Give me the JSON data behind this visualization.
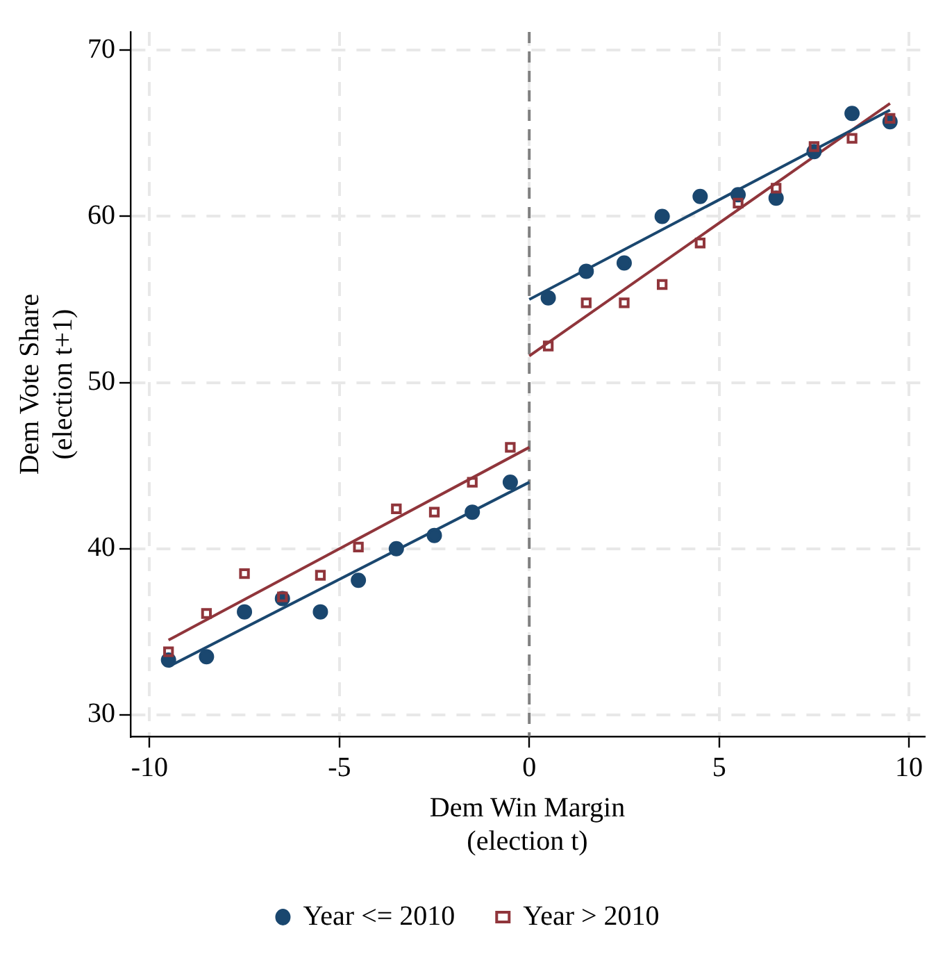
{
  "chart_data": {
    "type": "scatter",
    "xlabel": "Dem Win Margin\n(election t)",
    "ylabel": "Dem Vote Share\n(election t+1)",
    "x": [
      -9.5,
      -8.5,
      -7.5,
      -6.5,
      -5.5,
      -4.5,
      -3.5,
      -2.5,
      -1.5,
      -0.5,
      0.5,
      1.5,
      2.5,
      3.5,
      4.5,
      5.5,
      6.5,
      7.5,
      8.5,
      9.5
    ],
    "series": [
      {
        "name": "Year <= 2010",
        "marker": "circle",
        "color": "#1a476f",
        "values": [
          33.3,
          33.5,
          36.2,
          37.0,
          36.2,
          38.1,
          40.0,
          40.8,
          42.2,
          44.0,
          55.1,
          56.7,
          57.2,
          60.0,
          61.2,
          61.3,
          61.1,
          63.9,
          66.2,
          65.7
        ]
      },
      {
        "name": "Year > 2010",
        "marker": "square",
        "color": "#90353b",
        "values": [
          33.8,
          36.1,
          38.5,
          37.1,
          38.4,
          40.1,
          42.4,
          42.2,
          44.0,
          46.1,
          52.2,
          54.8,
          54.8,
          55.9,
          58.4,
          60.8,
          61.7,
          64.2,
          64.7,
          65.9
        ]
      },
      {
        "type": "line",
        "marker": "none",
        "color": "#1a476f",
        "x": [
          -9.5,
          0
        ],
        "values": [
          32.9,
          44.0
        ]
      },
      {
        "type": "line",
        "marker": "none",
        "color": "#90353b",
        "x": [
          -9.5,
          0
        ],
        "values": [
          34.5,
          46.1
        ]
      },
      {
        "type": "line",
        "marker": "none",
        "color": "#1a476f",
        "x": [
          0,
          9.5
        ],
        "values": [
          55.0,
          66.4
        ]
      },
      {
        "type": "line",
        "marker": "none",
        "color": "#90353b",
        "x": [
          0,
          9.5
        ],
        "values": [
          51.6,
          66.8
        ]
      }
    ],
    "xlim": [
      -10.5,
      10.4
    ],
    "xticks": [
      -10,
      -5,
      0,
      5,
      10
    ],
    "ylim": [
      28.7,
      71.1
    ],
    "yticks": [
      30,
      40,
      50,
      60,
      70
    ],
    "grid": true,
    "legend": "bottom",
    "ref_lines": [
      {
        "axis": "x",
        "value": 0,
        "color": "#808080",
        "line_style": "dashed"
      }
    ]
  }
}
